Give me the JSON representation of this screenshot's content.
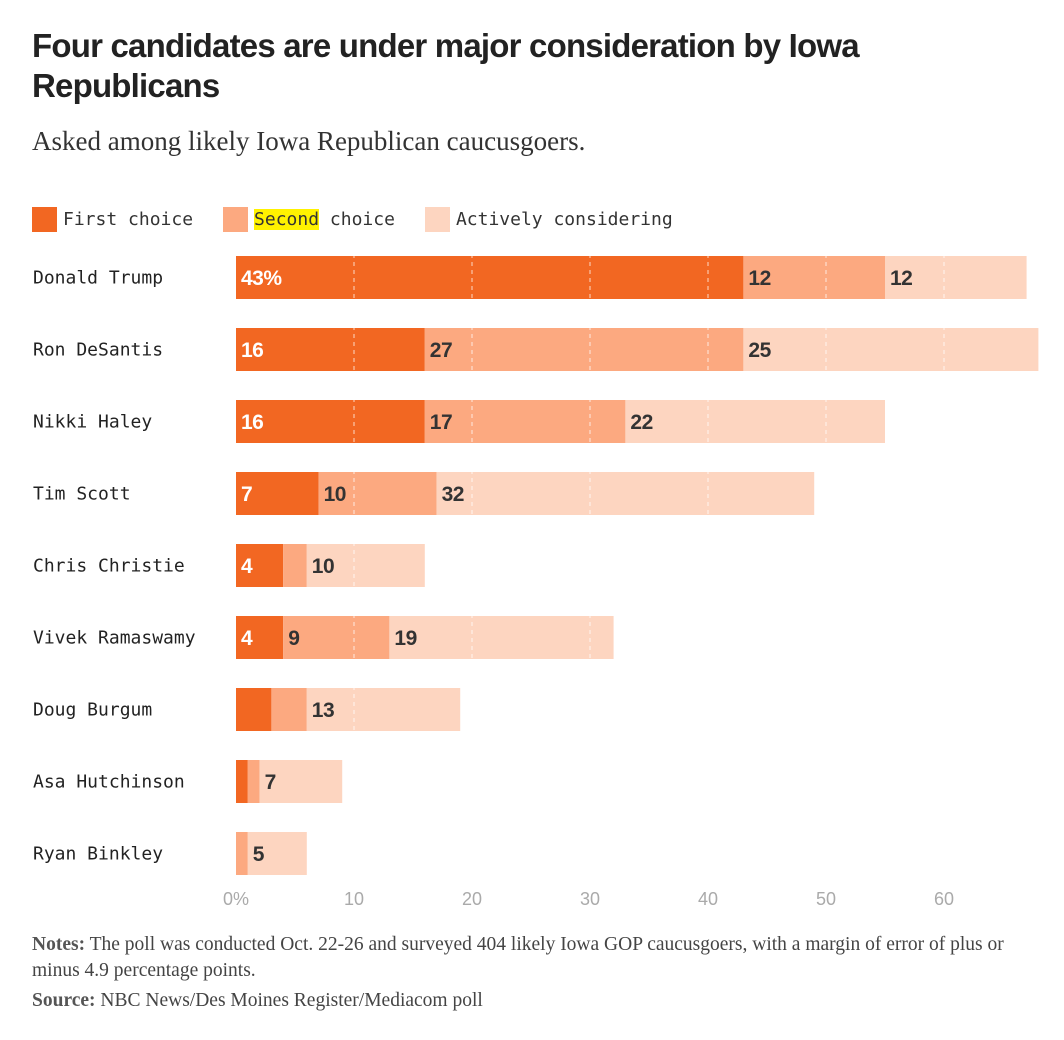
{
  "header": {
    "title": "Four candidates are under major consideration by Iowa Republicans",
    "subtitle": "Asked among likely Iowa Republican caucusgoers."
  },
  "legend": {
    "first": "First choice",
    "second_highlight": "Second",
    "second_rest": " choice",
    "considering": "Actively considering"
  },
  "colors": {
    "first": "#f26722",
    "second": "#fca980",
    "considering": "#fdd5c0",
    "axis_text": "#aaaaaa",
    "highlight": "#fff200"
  },
  "chart_data": {
    "type": "bar",
    "orientation": "horizontal",
    "stacked": true,
    "categories": [
      "Donald Trump",
      "Ron DeSantis",
      "Nikki Haley",
      "Tim Scott",
      "Chris Christie",
      "Vivek Ramaswamy",
      "Doug Burgum",
      "Asa Hutchinson",
      "Ryan Binkley"
    ],
    "series": [
      {
        "name": "First choice",
        "values": [
          43,
          16,
          16,
          7,
          4,
          4,
          3,
          1,
          0
        ]
      },
      {
        "name": "Second choice",
        "values": [
          12,
          27,
          17,
          10,
          2,
          9,
          3,
          1,
          1
        ]
      },
      {
        "name": "Actively considering",
        "values": [
          12,
          25,
          22,
          32,
          10,
          19,
          13,
          7,
          5
        ]
      }
    ],
    "labels": [
      [
        "43%",
        "12",
        "12"
      ],
      [
        "16",
        "27",
        "25"
      ],
      [
        "16",
        "17",
        "22"
      ],
      [
        "7",
        "10",
        "32"
      ],
      [
        "4",
        "",
        "10"
      ],
      [
        "4",
        "9",
        "19"
      ],
      [
        "",
        "",
        "13"
      ],
      [
        "",
        "",
        "7"
      ],
      [
        "",
        "",
        "5"
      ]
    ],
    "x_ticks": [
      "0%",
      "10",
      "20",
      "30",
      "40",
      "50",
      "60"
    ],
    "xlim": [
      0,
      68
    ],
    "grid": true,
    "legend_position": "top-left"
  },
  "footer": {
    "notes_label": "Notes:",
    "notes_text": " The poll was conducted Oct. 22-26 and surveyed 404 likely Iowa GOP caucusgoers, with a margin of error of plus or minus 4.9 percentage points.",
    "source_label": "Source:",
    "source_text": " NBC News/Des Moines Register/Mediacom poll"
  }
}
